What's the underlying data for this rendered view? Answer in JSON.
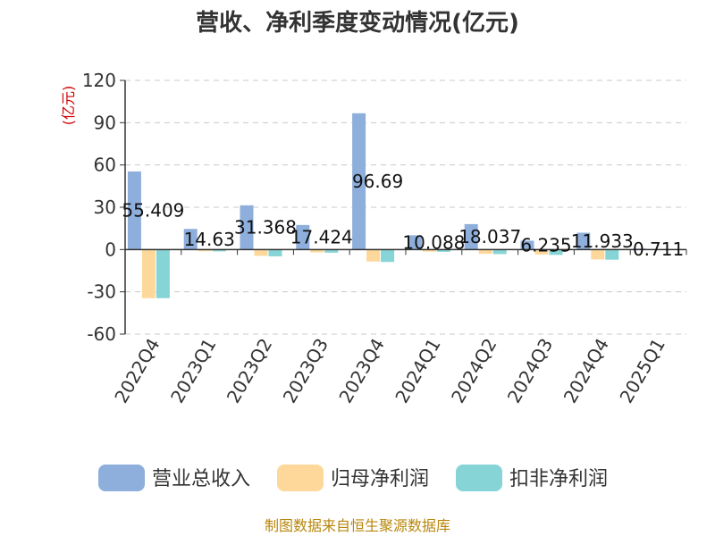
{
  "chart_data": {
    "type": "bar",
    "title": "营收、净利季度变动情况(亿元)",
    "unit_label": "(亿元)",
    "categories": [
      "2022Q4",
      "2023Q1",
      "2023Q2",
      "2023Q3",
      "2023Q4",
      "2024Q1",
      "2024Q2",
      "2024Q3",
      "2024Q4",
      "2025Q1"
    ],
    "ylim": [
      -60,
      120
    ],
    "yticks": [
      120,
      90,
      60,
      30,
      0,
      -30,
      -60
    ],
    "grid": true,
    "legend_position": "bottom",
    "series": [
      {
        "name": "营业总收入",
        "color": "#8eaedb",
        "values": [
          55.409,
          14.63,
          31.368,
          17.424,
          96.69,
          10.088,
          18.037,
          6.235,
          11.933,
          0.711
        ]
      },
      {
        "name": "归母净利润",
        "color": "#fdd89a",
        "values": [
          -34.5,
          -1.2,
          -4.5,
          -2.0,
          -8.5,
          -1.5,
          -3.0,
          -3.5,
          -7.0,
          -0.3
        ]
      },
      {
        "name": "扣非净利润",
        "color": "#86d4d6",
        "values": [
          -34.5,
          -1.3,
          -4.8,
          -2.2,
          -8.8,
          -1.6,
          -3.2,
          -3.8,
          -7.2,
          -0.4
        ]
      }
    ],
    "data_labels": [
      "55.409",
      "14.63",
      "31.368",
      "17.424",
      "96.69",
      "10.088",
      "18.037",
      "6.235",
      "11.933",
      "0.711"
    ]
  },
  "footer": {
    "source": "制图数据来自恒生聚源数据库"
  }
}
